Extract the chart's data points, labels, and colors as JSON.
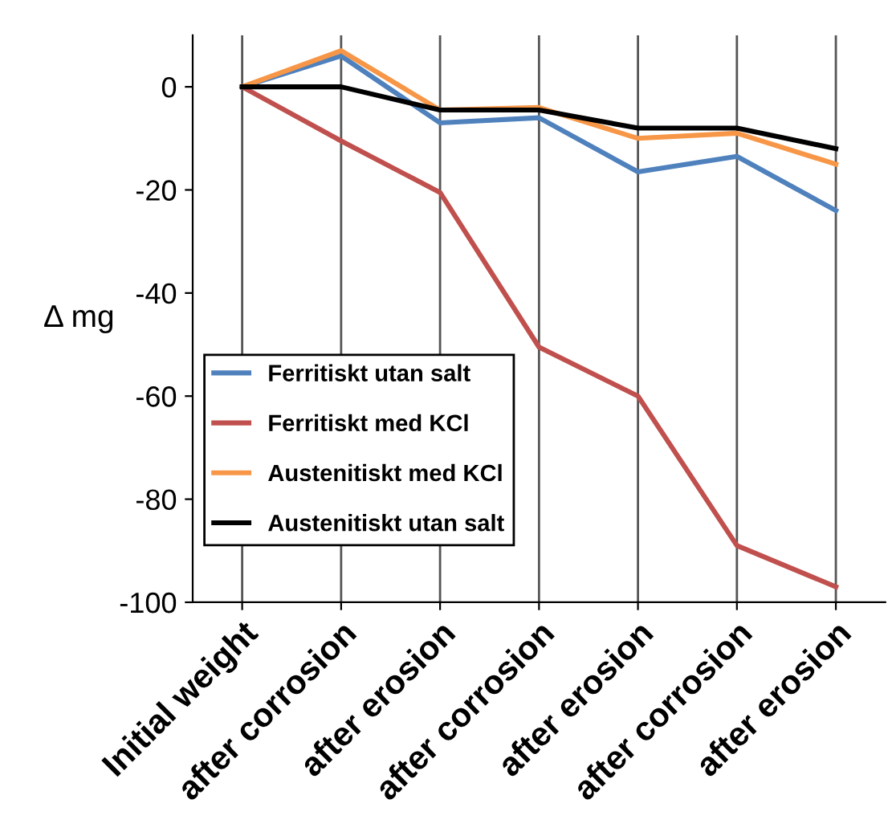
{
  "chart_data": {
    "type": "line",
    "ylabel": "Δ mg",
    "categories": [
      "Initial weight",
      "after corrosion",
      "after erosion",
      "after corrosion",
      "after erosion",
      "after corrosion",
      "after erosion"
    ],
    "series": [
      {
        "name": "Ferritiskt utan salt",
        "color": "#4f81bd",
        "values": [
          0,
          6,
          -7,
          -6,
          -16.5,
          -13.5,
          -24
        ]
      },
      {
        "name": "Ferritiskt med KCl",
        "color": "#c0504d",
        "values": [
          0,
          -10.5,
          -20.5,
          -50.5,
          -60,
          -89,
          -97
        ]
      },
      {
        "name": "Austenitiskt med KCl",
        "color": "#f79646",
        "values": [
          0,
          7,
          -4.5,
          -4,
          -10,
          -9,
          -15
        ]
      },
      {
        "name": "Austenitiskt utan salt",
        "color": "#000000",
        "values": [
          0,
          0,
          -4.5,
          -4.5,
          -8,
          -8,
          -12
        ]
      }
    ],
    "ylim": [
      -100,
      10
    ],
    "yticks": [
      -100,
      -80,
      -60,
      -40,
      -20,
      0
    ],
    "grid": "x",
    "legend": "bottom left",
    "marker": "none",
    "line_style": "solid"
  }
}
